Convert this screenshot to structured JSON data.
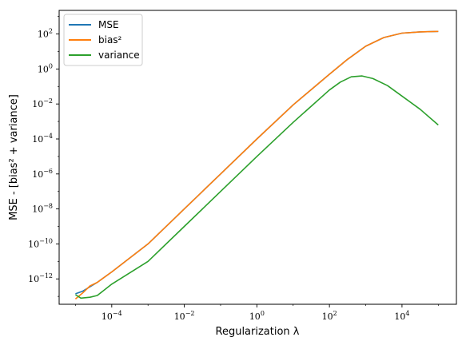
{
  "chart_data": {
    "type": "line",
    "title": "",
    "xlabel": "Regularization λ",
    "ylabel": "MSE - [bias² + variance]",
    "xscale": "log",
    "yscale": "log",
    "xlim_log10": [
      -5.45,
      5.5
    ],
    "ylim_log10": [
      -13.45,
      3.35
    ],
    "x_ticks_log10": [
      -4,
      -2,
      0,
      2,
      4
    ],
    "x_tick_labels": [
      "10^-4",
      "10^-2",
      "10^0",
      "10^2",
      "10^4"
    ],
    "y_ticks_log10": [
      -12,
      -10,
      -8,
      -6,
      -4,
      -2,
      0,
      2
    ],
    "y_tick_labels": [
      "10^-12",
      "10^-10",
      "10^-8",
      "10^-6",
      "10^-4",
      "10^-2",
      "10^0",
      "10^2"
    ],
    "legend_position": "top-left",
    "series": [
      {
        "name": "MSE",
        "color": "#1f77b4",
        "log10_x": [
          -5,
          -4.8,
          -4.6,
          -4.4,
          -4,
          -3,
          -2,
          -1,
          0,
          1,
          2,
          2.5,
          3,
          3.5,
          4,
          4.5,
          5
        ],
        "log10_y": [
          -12.85,
          -12.7,
          -12.45,
          -12.2,
          -11.6,
          -10.0,
          -8.0,
          -6.0,
          -4.0,
          -2.05,
          -0.3,
          0.55,
          1.3,
          1.8,
          2.05,
          2.12,
          2.15
        ]
      },
      {
        "name": "bias²",
        "color": "#ff7f0e",
        "log10_x": [
          -5,
          -4.8,
          -4.6,
          -4.4,
          -4,
          -3,
          -2,
          -1,
          0,
          1,
          2,
          2.5,
          3,
          3.5,
          4,
          4.5,
          5
        ],
        "log10_y": [
          -13.15,
          -12.8,
          -12.4,
          -12.2,
          -11.6,
          -10.0,
          -8.0,
          -6.0,
          -4.0,
          -2.05,
          -0.3,
          0.55,
          1.3,
          1.8,
          2.05,
          2.12,
          2.15
        ]
      },
      {
        "name": "variance",
        "color": "#2ca02c",
        "log10_x": [
          -5,
          -4.85,
          -4.6,
          -4.4,
          -4,
          -3,
          -2,
          -1,
          0,
          1,
          2,
          2.3,
          2.6,
          2.9,
          3.2,
          3.6,
          4,
          4.5,
          5
        ],
        "log10_y": [
          -12.9,
          -13.1,
          -13.05,
          -12.95,
          -12.3,
          -11.0,
          -9.0,
          -7.0,
          -5.0,
          -3.05,
          -1.2,
          -0.75,
          -0.45,
          -0.4,
          -0.55,
          -0.95,
          -1.55,
          -2.3,
          -3.2
        ]
      }
    ]
  }
}
